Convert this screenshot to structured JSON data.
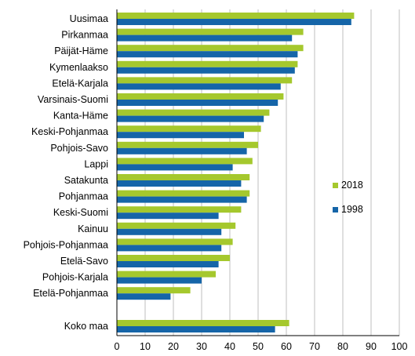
{
  "chart_data": {
    "type": "bar",
    "orientation": "horizontal",
    "categories": [
      "Uusimaa",
      "Pirkanmaa",
      "Päijät-Häme",
      "Kymenlaakso",
      "Etelä-Karjala",
      "Varsinais-Suomi",
      "Kanta-Häme",
      "Keski-Pohjanmaa",
      "Pohjois-Savo",
      "Lappi",
      "Satakunta",
      "Pohjanmaa",
      "Keski-Suomi",
      "Kainuu",
      "Pohjois-Pohjanmaa",
      "Etelä-Savo",
      "Pohjois-Karjala",
      "Etelä-Pohjanmaa",
      "Koko maa"
    ],
    "series": [
      {
        "name": "2018",
        "color": "#a5c82d",
        "values": [
          84,
          66,
          66,
          64,
          62,
          59,
          54,
          51,
          50,
          48,
          47,
          47,
          44,
          42,
          41,
          40,
          35,
          26,
          61
        ]
      },
      {
        "name": "1998",
        "color": "#1565a8",
        "values": [
          83,
          62,
          64,
          63,
          58,
          57,
          52,
          45,
          46,
          41,
          44,
          46,
          36,
          37,
          37,
          36,
          30,
          19,
          56
        ]
      }
    ],
    "xlim": [
      0,
      100
    ],
    "xticks": [
      "0",
      "10",
      "20",
      "30",
      "40",
      "50",
      "60",
      "70",
      "80",
      "90",
      "100"
    ],
    "grid": true,
    "legend": "right",
    "title": "",
    "xlabel": "",
    "ylabel": ""
  }
}
